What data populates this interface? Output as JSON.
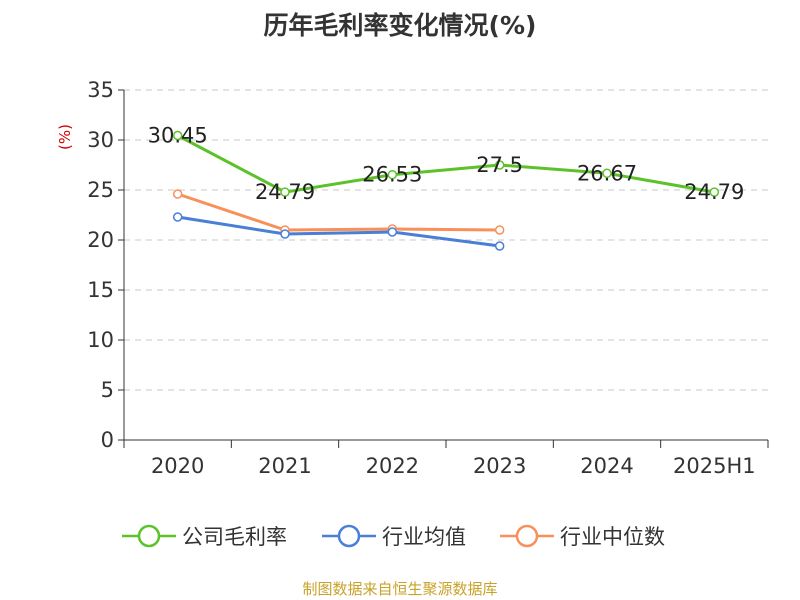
{
  "chart_data": {
    "type": "line",
    "title": "历年毛利率变化情况(%)",
    "unit_label": "(%)",
    "categories": [
      "2020",
      "2021",
      "2022",
      "2023",
      "2024",
      "2025H1"
    ],
    "ylim": [
      0,
      35
    ],
    "yticks": [
      "0",
      "5",
      "10",
      "15",
      "20",
      "25",
      "30",
      "35"
    ],
    "grid": true,
    "legend_position": "bottom",
    "series": [
      {
        "name": "公司毛利率",
        "color": "#5cc22a",
        "values": [
          30.45,
          24.79,
          26.53,
          27.5,
          26.67,
          24.79
        ],
        "labels": [
          "30.45",
          "24.79",
          "26.53",
          "27.5",
          "26.67",
          "24.79"
        ]
      },
      {
        "name": "行业均值",
        "color": "#4a7fd6",
        "values": [
          22.3,
          20.6,
          20.8,
          19.4,
          null,
          null
        ]
      },
      {
        "name": "行业中位数",
        "color": "#f7905a",
        "values": [
          24.6,
          21.0,
          21.1,
          21.0,
          null,
          null
        ]
      }
    ],
    "source": "制图数据来自恒生聚源数据库"
  }
}
